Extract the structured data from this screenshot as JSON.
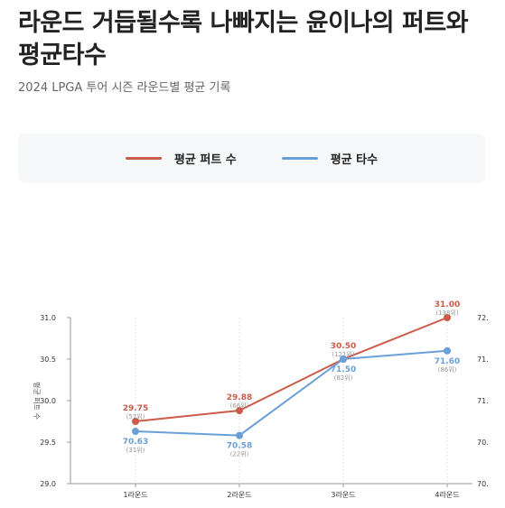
{
  "header": {
    "title": "라운드 거듭될수록 나빠지는 윤이나의 퍼트와 평균타수",
    "subtitle": "2024 LPGA 투어 시즌 라운드별 평균 기록"
  },
  "legend": [
    {
      "label": "평균 퍼트 수",
      "color": "#cc5a48"
    },
    {
      "label": "평균 타수",
      "color": "#6a9fd8"
    }
  ],
  "chart_data": {
    "type": "line",
    "categories": [
      "1라운드",
      "2라운드",
      "3라운드",
      "4라운드"
    ],
    "series": [
      {
        "name": "평균 퍼트 수",
        "axis": "left",
        "color": "#cc5a48",
        "values": [
          29.75,
          29.88,
          30.5,
          31.0
        ],
        "labels": [
          "29.75",
          "29.88",
          "30.50",
          "31.00"
        ],
        "ranks": [
          "(57위)",
          "(66위)",
          "(121위)",
          "(138위)"
        ]
      },
      {
        "name": "평균 타수",
        "axis": "right",
        "color": "#6a9fd8",
        "values": [
          70.63,
          70.58,
          71.5,
          71.6
        ],
        "labels": [
          "70.63",
          "70.58",
          "71.50",
          "71.60"
        ],
        "ranks": [
          "(31위)",
          "(22위)",
          "(82위)",
          "(86위)"
        ]
      }
    ],
    "left_axis": {
      "label": "평균 퍼트 수",
      "ylim": [
        29.0,
        31.0
      ],
      "ticks": [
        "29.0",
        "29.5",
        "30.0",
        "30.5",
        "31.0"
      ]
    },
    "right_axis": {
      "ylim": [
        70.0,
        72.0
      ],
      "ticks": [
        "70.",
        "70.",
        "71.",
        "71.",
        "72."
      ]
    },
    "grid": "vertical"
  }
}
